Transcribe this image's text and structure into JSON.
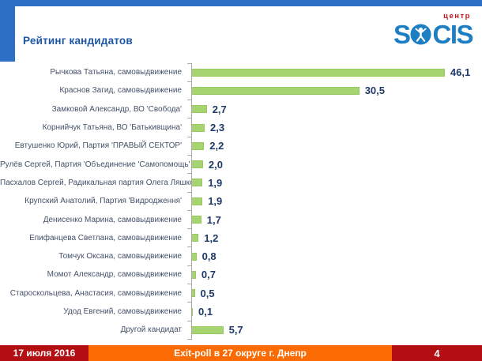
{
  "header": {
    "title": "Рейтинг кандидатов",
    "logo": {
      "wordmark_left": "S",
      "wordmark_right": "CIS",
      "sub": "центр"
    }
  },
  "chart_data": {
    "type": "bar",
    "orientation": "horizontal",
    "title": "Рейтинг кандидатов",
    "unit": "percent",
    "xlim": [
      0,
      46.1
    ],
    "grid": false,
    "legend": false,
    "bar_color": "#A5D470",
    "categories": [
      "Рычкова Татьяна, самовыдвижение",
      "Краснов Загид, самовыдвижение",
      "Замковой Александр, ВО 'Свобода'",
      "Корнийчук Татьяна, ВО 'Батькивщина'",
      "Евтушенко Юрий, Партия 'ПРАВЫЙ СЕКТОР'",
      "Рулёв Сергей, Партия 'Объединение 'Самопомощь'",
      "Пасхалов Сергей, Радикальная партия Олега Ляшко",
      "Крупский Анатолий, Партия 'Видродження'",
      "Денисенко Марина, самовыдвижение",
      "Епифанцева Светлана, самовыдвижение",
      "Томчук Оксана, самовыдвижение",
      "Момот Александр, самовыдвижение",
      "Староскольцева, Анастасия, самовыдвижение",
      "Удод Евгений, самовыдвижение",
      "Другой кандидат"
    ],
    "values": [
      46.1,
      30.5,
      2.7,
      2.3,
      2.2,
      2.0,
      1.9,
      1.9,
      1.7,
      1.2,
      0.8,
      0.7,
      0.5,
      0.1,
      5.7
    ],
    "value_labels": [
      "46,1",
      "30,5",
      "2,7",
      "2,3",
      "2,2",
      "2,0",
      "1,9",
      "1,9",
      "1,7",
      "1,2",
      "0,8",
      "0,7",
      "0,5",
      "0,1",
      "5,7"
    ]
  },
  "footer": {
    "date": "17 июля 2016",
    "caption": "Exit-poll в 27 округе г. Днепр",
    "page_number": "4"
  },
  "colors": {
    "accent_blue": "#2C70C6",
    "title_blue": "#1C56A6",
    "logo_blue": "#1E7EC3",
    "logo_red": "#C4171C",
    "bar_green": "#A5D470",
    "bar_border": "#96CA5F",
    "value_navy": "#1F3A68",
    "label_slate": "#44516A",
    "footer_red": "#B30E11",
    "footer_orange": "#FB6A03"
  }
}
